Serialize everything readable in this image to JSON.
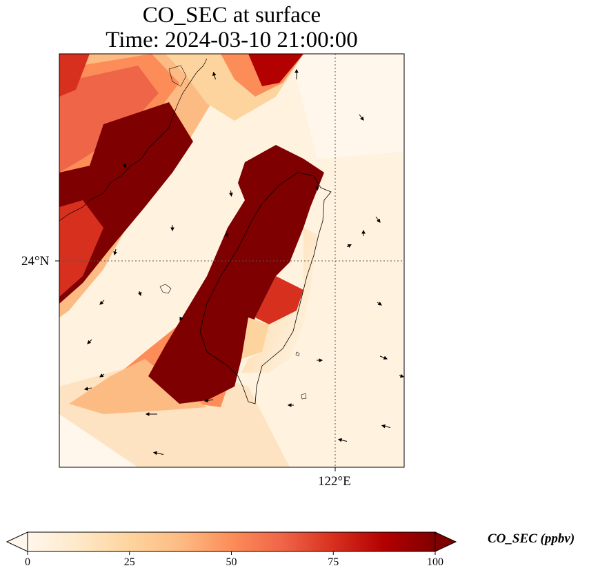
{
  "title": {
    "line1": "CO_SEC at surface",
    "line2": "Time: 2024-03-10 21:00:00"
  },
  "axes": {
    "lat_label": "24°N",
    "lon_label": "122°E"
  },
  "colorbar": {
    "label": "CO_SEC (ppbv)",
    "ticks": [
      "0",
      "25",
      "50",
      "75",
      "100"
    ],
    "range": [
      0,
      100
    ],
    "extend": "both",
    "colormap": "OrRd",
    "colors": [
      "#fff7ec",
      "#fee8c8",
      "#fdd49e",
      "#fdbb84",
      "#fc8d59",
      "#ef6548",
      "#d7301f",
      "#b30000",
      "#7f0000"
    ]
  },
  "map": {
    "gridlines": "dotted",
    "features": [
      "coastlines",
      "wind-vectors"
    ]
  }
}
